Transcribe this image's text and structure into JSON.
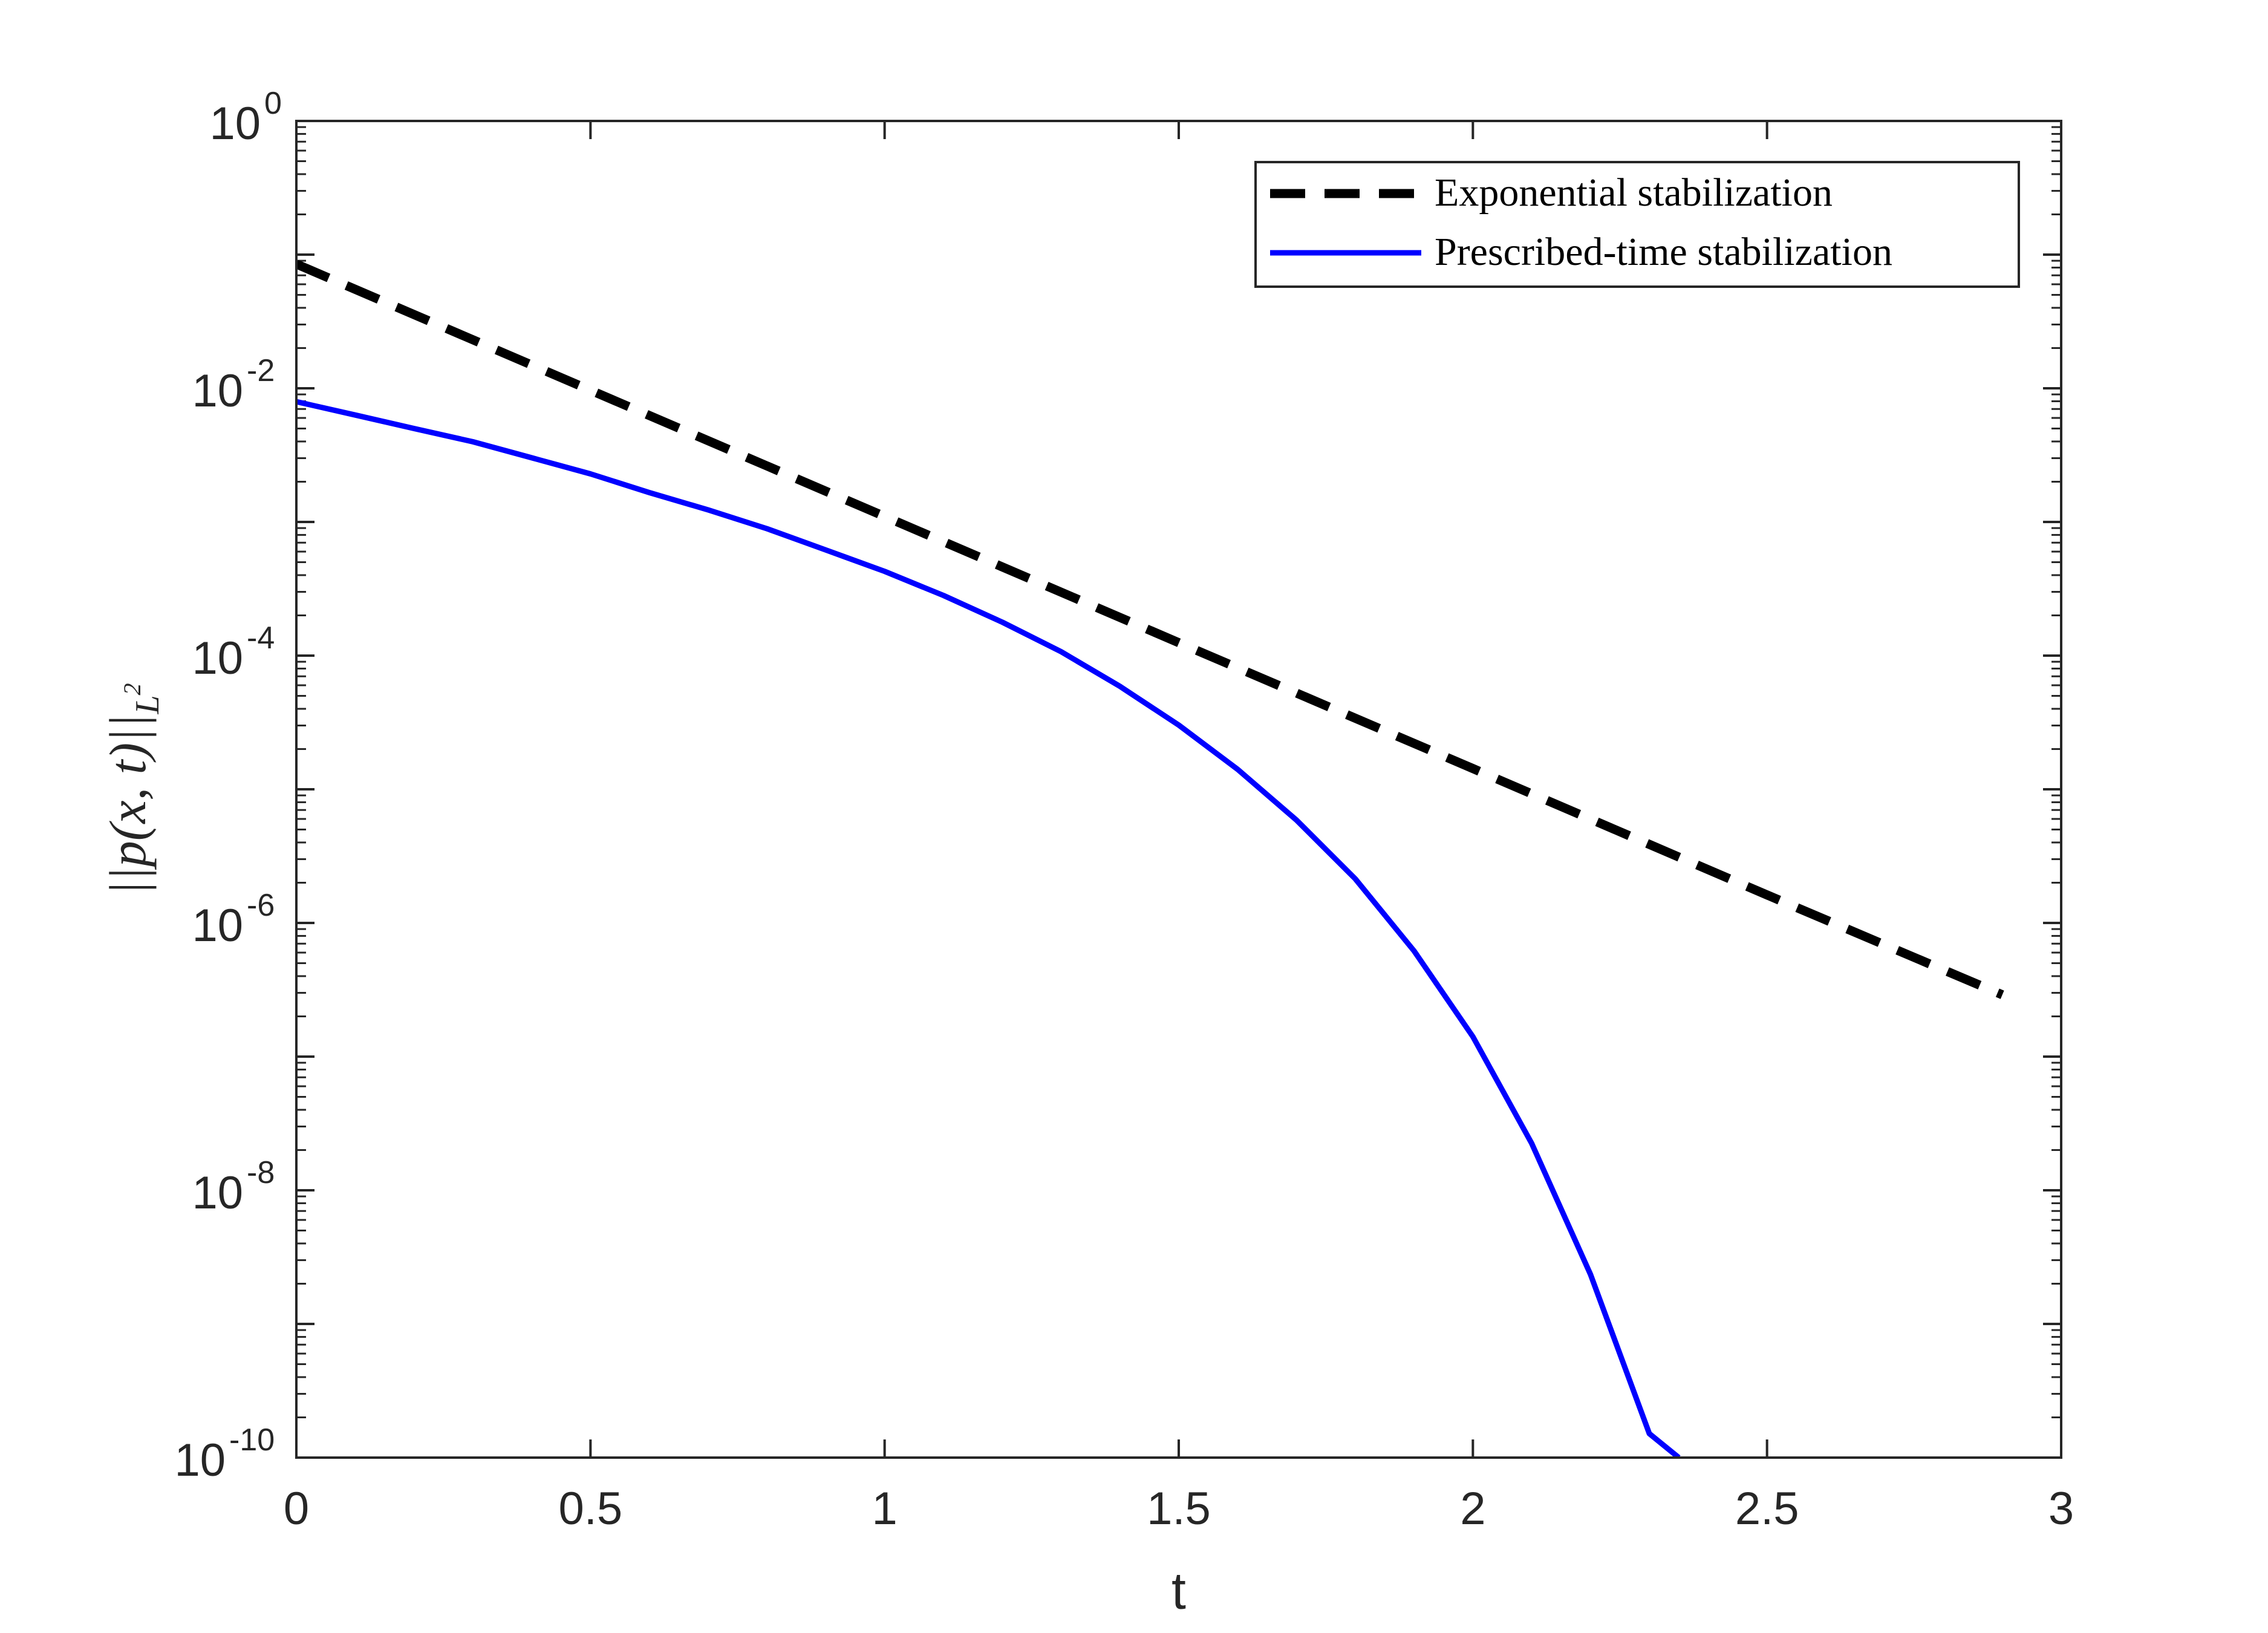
{
  "chart_data": {
    "type": "line",
    "title": "",
    "xlabel": "t",
    "ylabel": "||p(x, t)||",
    "ylabel_subscript": "L",
    "ylabel_superscript": "2",
    "xlim": [
      0,
      3
    ],
    "ylim": [
      1e-10,
      1
    ],
    "yscale": "log",
    "grid": false,
    "legend_position": "top-right",
    "x_ticks": [
      0,
      0.5,
      1,
      1.5,
      2,
      2.5,
      3
    ],
    "x_tick_labels": [
      "0",
      "0.5",
      "1",
      "1.5",
      "2",
      "2.5",
      "3"
    ],
    "y_tick_exponents": [
      0,
      -2,
      -4,
      -6,
      -8,
      -10
    ],
    "y_tick_base": "10",
    "y_tick_sup_labels": [
      "0",
      "-2",
      "-4",
      "-6",
      "-8",
      "-10"
    ],
    "series": [
      {
        "name": "Exponential stabilization",
        "color": "#000000",
        "style": "dashed",
        "x": [
          0,
          0.5,
          1,
          1.5,
          2,
          2.5,
          2.9
        ],
        "y": [
          0.085,
          0.00967,
          0.0011,
          0.000125,
          1.43e-05,
          1.62e-06,
          2.9e-07
        ]
      },
      {
        "name": "Prescribed-time stabilization",
        "color": "#0000ff",
        "style": "solid",
        "x": [
          0,
          0.1,
          0.2,
          0.3,
          0.4,
          0.5,
          0.6,
          0.7,
          0.8,
          0.9,
          1.0,
          1.1,
          1.2,
          1.3,
          1.4,
          1.5,
          1.6,
          1.7,
          1.8,
          1.9,
          2.0,
          2.1,
          2.2,
          2.3,
          2.35
        ],
        "y": [
          0.00794,
          0.00631,
          0.005,
          0.00398,
          0.00302,
          0.00229,
          0.00166,
          0.00123,
          0.000891,
          0.000617,
          0.000427,
          0.000282,
          0.000178,
          0.000107,
          5.89e-05,
          3.02e-05,
          1.41e-05,
          5.89e-06,
          2.14e-06,
          6.17e-07,
          1.41e-07,
          2.24e-08,
          2.34e-09,
          1.51e-10,
          1e-10
        ]
      }
    ]
  }
}
